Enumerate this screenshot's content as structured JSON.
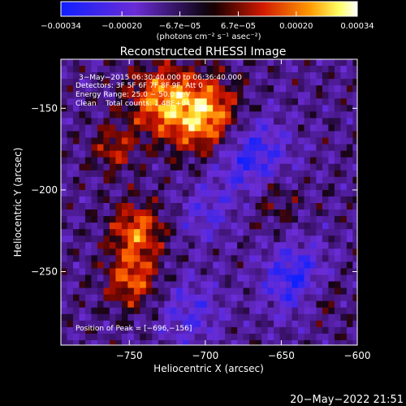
{
  "chart_data": {
    "type": "heatmap",
    "title": "Reconstructed RHESSI Image",
    "xlabel": "Heliocentric X (arcsec)",
    "ylabel": "Heliocentric Y (arcsec)",
    "xlim": [
      -795,
      -600
    ],
    "ylim": [
      -295,
      -120
    ],
    "xticks": [
      -750,
      -700,
      -650,
      -600
    ],
    "xtick_labels": [
      "−750",
      "−700",
      "−650",
      "−600"
    ],
    "yticks": [
      -150,
      -200,
      -250
    ],
    "ytick_labels": [
      "−150",
      "−200",
      "−250"
    ],
    "colorbar": {
      "range": [
        -0.00034,
        0.00034
      ],
      "ticks": [
        -0.00034,
        -0.0002,
        -6.7e-05,
        6.7e-05,
        0.0002,
        0.00034
      ],
      "tick_labels": [
        "−0.00034",
        "−0.00020",
        "−6.7e−05",
        "6.7e−05",
        "0.00020",
        "0.00034"
      ],
      "unit_label": "(photons cm⁻² s⁻¹ asec⁻²)",
      "colormap": "blue-purple-black-red-yellow-white"
    },
    "annotations": [
      "3−May−2015 06:30:40.000 to 06:36:40.000",
      "Detectors: 3F 5F 6F 7F 8F 9F, Att 0",
      "Energy Range: 25.0 − 50.0 keV",
      "Clean    Total counts: 1.48E+04"
    ],
    "peak_label": "Position of Peak = [−696,−156]",
    "peak_position": [
      -696,
      -156
    ],
    "bright_sources": [
      {
        "x": -700,
        "y": -155,
        "sigma": 16,
        "value": 0.00034
      },
      {
        "x": -730,
        "y": -145,
        "sigma": 15,
        "value": 0.00026
      },
      {
        "x": -745,
        "y": -225,
        "sigma": 12,
        "value": 0.00025
      },
      {
        "x": -748,
        "y": -255,
        "sigma": 12,
        "value": 0.00023
      },
      {
        "x": -760,
        "y": -175,
        "sigma": 10,
        "value": 0.00016
      },
      {
        "x": -655,
        "y": -205,
        "sigma": 12,
        "value": 0.00012
      },
      {
        "x": -625,
        "y": -265,
        "sigma": 11,
        "value": 0.00012
      }
    ],
    "negative_regions": [
      {
        "x": -670,
        "y": -180,
        "sigma": 18,
        "value": -0.00022
      },
      {
        "x": -640,
        "y": -255,
        "sigma": 15,
        "value": -0.00024
      },
      {
        "x": -710,
        "y": -275,
        "sigma": 15,
        "value": -0.00014
      },
      {
        "x": -700,
        "y": -215,
        "sigma": 12,
        "value": -0.00012
      }
    ],
    "grid": false,
    "legend": "none"
  },
  "footer": {
    "timestamp": "20−May−2022 21:51"
  }
}
